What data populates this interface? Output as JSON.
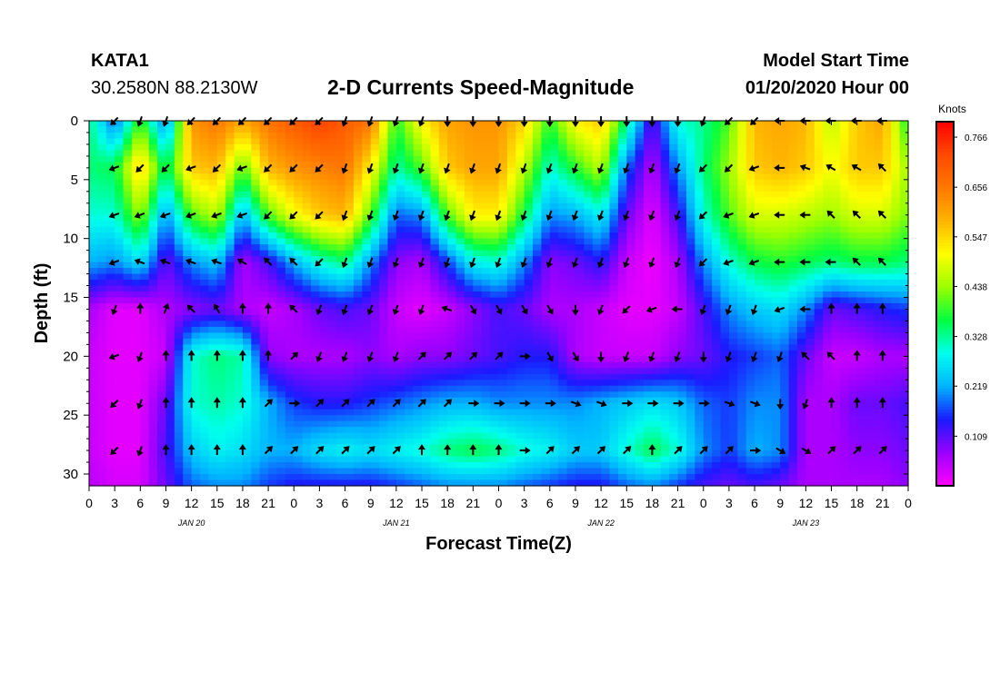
{
  "header": {
    "station": "KATA1",
    "coords": "30.2580N 88.2130W",
    "title": "2-D Currents Speed-Magnitude",
    "model_start_label": "Model Start Time",
    "model_start_value": "01/20/2020 Hour 00"
  },
  "colors": {
    "ramp": [
      "#ff00ff",
      "#9a00ff",
      "#1a1aff",
      "#00b4ff",
      "#00ffee",
      "#00ff40",
      "#9bff00",
      "#ffff00",
      "#ffb400",
      "#ff7800",
      "#ff4a00",
      "#ff0000"
    ],
    "arrow": "#000000"
  },
  "chart_data": {
    "type": "heatmap",
    "title": "2-D Currents Speed-Magnitude",
    "xlabel": "Forecast Time(Z)",
    "ylabel": "Depth (ft)",
    "x_tick_labels": [
      "0",
      "3",
      "6",
      "9",
      "12",
      "15",
      "18",
      "21",
      "0",
      "3",
      "6",
      "9",
      "12",
      "15",
      "18",
      "21",
      "0",
      "3",
      "6",
      "9",
      "12",
      "15",
      "18",
      "21",
      "0",
      "3",
      "6",
      "9",
      "12",
      "15",
      "18",
      "21",
      "0"
    ],
    "x_hours": [
      0,
      3,
      6,
      9,
      12,
      15,
      18,
      21,
      24,
      27,
      30,
      33,
      36,
      39,
      42,
      45,
      48,
      51,
      54,
      57,
      60,
      63,
      66,
      69,
      72,
      75,
      78,
      81,
      84,
      87,
      90,
      93,
      96
    ],
    "xlim_hours": [
      0,
      96
    ],
    "date_labels": [
      {
        "label": "JAN 20",
        "hour": 12
      },
      {
        "label": "JAN 21",
        "hour": 36
      },
      {
        "label": "JAN 22",
        "hour": 60
      },
      {
        "label": "JAN 23",
        "hour": 84
      }
    ],
    "y_ticks": [
      0,
      5,
      10,
      15,
      20,
      25,
      30
    ],
    "ylim": [
      0,
      31
    ],
    "y_inverted": true,
    "colorbar": {
      "title": "Knots",
      "labels": [
        "0.766",
        "0.656",
        "0.547",
        "0.438",
        "0.328",
        "0.219",
        "0.109"
      ],
      "values": [
        0.766,
        0.656,
        0.547,
        0.438,
        0.328,
        0.219,
        0.109
      ],
      "range": [
        0,
        0.8
      ]
    },
    "speed_depths": [
      0,
      4,
      8,
      12,
      16,
      20,
      24,
      28,
      31
    ],
    "speed_hours": [
      0,
      3,
      6,
      9,
      12,
      15,
      18,
      21,
      24,
      27,
      30,
      33,
      36,
      39,
      42,
      45,
      48,
      51,
      54,
      57,
      60,
      63,
      66,
      69,
      72,
      75,
      78,
      81,
      84,
      87,
      90,
      93,
      96
    ],
    "speed": [
      [
        0.34,
        0.17,
        0.4,
        0.18,
        0.62,
        0.66,
        0.6,
        0.66,
        0.7,
        0.74,
        0.7,
        0.66,
        0.38,
        0.52,
        0.6,
        0.62,
        0.62,
        0.55,
        0.38,
        0.52,
        0.56,
        0.34,
        0.1,
        0.3,
        0.33,
        0.4,
        0.58,
        0.6,
        0.58,
        0.46,
        0.56,
        0.6,
        0.36
      ],
      [
        0.34,
        0.36,
        0.56,
        0.34,
        0.56,
        0.58,
        0.4,
        0.58,
        0.62,
        0.64,
        0.66,
        0.52,
        0.32,
        0.4,
        0.56,
        0.6,
        0.6,
        0.46,
        0.3,
        0.38,
        0.46,
        0.18,
        0.05,
        0.2,
        0.34,
        0.44,
        0.56,
        0.58,
        0.56,
        0.5,
        0.56,
        0.56,
        0.44
      ],
      [
        0.3,
        0.3,
        0.44,
        0.2,
        0.4,
        0.46,
        0.22,
        0.4,
        0.5,
        0.56,
        0.58,
        0.4,
        0.18,
        0.2,
        0.4,
        0.52,
        0.52,
        0.36,
        0.2,
        0.22,
        0.28,
        0.1,
        0.02,
        0.12,
        0.3,
        0.4,
        0.48,
        0.48,
        0.46,
        0.44,
        0.48,
        0.48,
        0.42
      ],
      [
        0.22,
        0.2,
        0.26,
        0.1,
        0.2,
        0.24,
        0.06,
        0.12,
        0.22,
        0.3,
        0.34,
        0.2,
        0.08,
        0.06,
        0.16,
        0.28,
        0.3,
        0.2,
        0.08,
        0.1,
        0.14,
        0.04,
        0.01,
        0.06,
        0.2,
        0.3,
        0.36,
        0.38,
        0.36,
        0.34,
        0.36,
        0.36,
        0.34
      ],
      [
        0.06,
        0.02,
        0.02,
        0.06,
        0.08,
        0.1,
        0.06,
        0.04,
        0.06,
        0.1,
        0.12,
        0.1,
        0.04,
        0.02,
        0.04,
        0.08,
        0.12,
        0.1,
        0.06,
        0.06,
        0.04,
        0.02,
        0.02,
        0.04,
        0.12,
        0.2,
        0.24,
        0.26,
        0.2,
        0.1,
        0.12,
        0.14,
        0.16
      ],
      [
        0.04,
        0.02,
        0.02,
        0.04,
        0.3,
        0.34,
        0.32,
        0.08,
        0.06,
        0.06,
        0.06,
        0.08,
        0.06,
        0.08,
        0.08,
        0.1,
        0.12,
        0.14,
        0.14,
        0.06,
        0.04,
        0.04,
        0.04,
        0.08,
        0.1,
        0.14,
        0.16,
        0.18,
        0.1,
        0.04,
        0.04,
        0.06,
        0.06
      ],
      [
        0.04,
        0.02,
        0.02,
        0.1,
        0.3,
        0.32,
        0.3,
        0.22,
        0.16,
        0.14,
        0.14,
        0.16,
        0.18,
        0.2,
        0.22,
        0.22,
        0.2,
        0.2,
        0.2,
        0.2,
        0.22,
        0.24,
        0.26,
        0.24,
        0.18,
        0.16,
        0.2,
        0.2,
        0.06,
        0.06,
        0.1,
        0.1,
        0.12
      ],
      [
        0.04,
        0.02,
        0.02,
        0.12,
        0.24,
        0.28,
        0.26,
        0.22,
        0.22,
        0.26,
        0.28,
        0.26,
        0.28,
        0.3,
        0.34,
        0.36,
        0.34,
        0.3,
        0.28,
        0.24,
        0.24,
        0.3,
        0.36,
        0.3,
        0.2,
        0.16,
        0.22,
        0.2,
        0.06,
        0.06,
        0.08,
        0.08,
        0.1
      ],
      [
        0.05,
        0.03,
        0.03,
        0.1,
        0.18,
        0.2,
        0.2,
        0.16,
        0.14,
        0.14,
        0.14,
        0.14,
        0.16,
        0.18,
        0.2,
        0.2,
        0.2,
        0.18,
        0.16,
        0.14,
        0.14,
        0.18,
        0.2,
        0.16,
        0.12,
        0.1,
        0.12,
        0.1,
        0.06,
        0.06,
        0.06,
        0.06,
        0.08
      ]
    ],
    "arrow_depths": [
      0,
      4,
      8,
      12,
      16,
      20,
      24,
      28
    ],
    "arrow_hours": [
      0,
      3,
      6,
      9,
      12,
      15,
      18,
      21,
      24,
      27,
      30,
      33,
      36,
      39,
      42,
      45,
      48,
      51,
      54,
      57,
      60,
      63,
      66,
      69,
      72,
      75,
      78,
      81,
      84,
      87,
      90,
      93,
      96
    ],
    "arrow_dir_deg": [
      [
        225,
        225,
        200,
        200,
        225,
        225,
        225,
        225,
        225,
        225,
        200,
        200,
        200,
        200,
        180,
        180,
        180,
        180,
        180,
        180,
        180,
        180,
        180,
        180,
        200,
        225,
        225,
        270,
        270,
        270,
        270,
        270,
        270
      ],
      [
        250,
        250,
        225,
        225,
        250,
        225,
        250,
        225,
        225,
        225,
        200,
        200,
        200,
        200,
        200,
        200,
        200,
        200,
        200,
        200,
        200,
        200,
        200,
        200,
        225,
        225,
        250,
        270,
        290,
        300,
        300,
        315,
        315
      ],
      [
        250,
        250,
        250,
        250,
        250,
        250,
        250,
        225,
        225,
        225,
        200,
        200,
        200,
        200,
        200,
        200,
        200,
        200,
        200,
        200,
        200,
        200,
        200,
        200,
        225,
        250,
        250,
        270,
        270,
        315,
        315,
        315,
        315
      ],
      [
        250,
        250,
        290,
        290,
        290,
        290,
        300,
        315,
        315,
        225,
        200,
        200,
        200,
        200,
        200,
        200,
        200,
        200,
        200,
        200,
        200,
        200,
        200,
        200,
        225,
        250,
        250,
        270,
        270,
        270,
        315,
        315,
        340
      ],
      [
        250,
        200,
        0,
        20,
        315,
        330,
        0,
        0,
        315,
        200,
        200,
        200,
        200,
        200,
        290,
        150,
        150,
        150,
        150,
        180,
        200,
        225,
        250,
        270,
        200,
        200,
        200,
        250,
        270,
        0,
        0,
        0,
        0
      ],
      [
        250,
        250,
        200,
        0,
        0,
        0,
        0,
        0,
        45,
        200,
        200,
        200,
        200,
        45,
        45,
        45,
        45,
        90,
        150,
        150,
        180,
        200,
        200,
        200,
        180,
        200,
        200,
        200,
        315,
        315,
        0,
        0,
        0
      ],
      [
        225,
        225,
        200,
        0,
        0,
        0,
        0,
        45,
        90,
        45,
        45,
        45,
        45,
        45,
        45,
        90,
        90,
        90,
        90,
        110,
        110,
        90,
        90,
        90,
        90,
        110,
        110,
        180,
        200,
        0,
        0,
        0,
        0
      ],
      [
        225,
        225,
        200,
        0,
        0,
        0,
        0,
        45,
        45,
        45,
        45,
        45,
        45,
        0,
        0,
        0,
        0,
        90,
        45,
        45,
        45,
        45,
        0,
        45,
        45,
        45,
        90,
        120,
        120,
        45,
        45,
        45,
        45
      ]
    ]
  }
}
